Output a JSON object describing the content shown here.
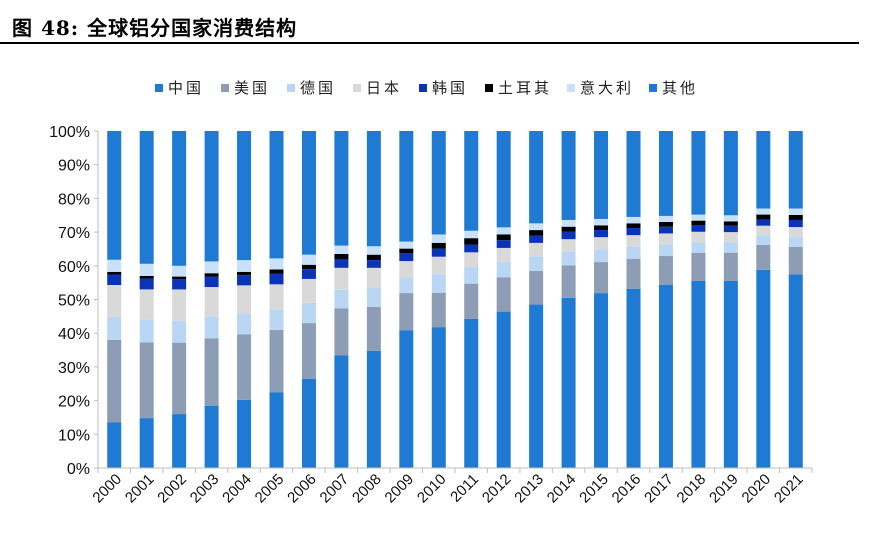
{
  "figure": {
    "title": "图 48:  全球铝分国家消费结构"
  },
  "chart_data": {
    "type": "bar",
    "stacked": true,
    "title": "",
    "xlabel": "",
    "ylabel": "",
    "ylim": [
      0,
      100
    ],
    "y_ticks": [
      "0%",
      "10%",
      "20%",
      "30%",
      "40%",
      "50%",
      "60%",
      "70%",
      "80%",
      "90%",
      "100%"
    ],
    "y_tick_values": [
      0,
      10,
      20,
      30,
      40,
      50,
      60,
      70,
      80,
      90,
      100
    ],
    "legend_position": "top",
    "categories": [
      "2000",
      "2001",
      "2002",
      "2003",
      "2004",
      "2005",
      "2006",
      "2007",
      "2008",
      "2009",
      "2010",
      "2011",
      "2012",
      "2013",
      "2014",
      "2015",
      "2016",
      "2017",
      "2018",
      "2019",
      "2020",
      "2021"
    ],
    "series": [
      {
        "name": "中国",
        "color": "#1f7ad4",
        "values": [
          13.5,
          14.8,
          16.0,
          18.5,
          20.2,
          22.5,
          26.5,
          33.4,
          34.8,
          40.9,
          41.8,
          44.3,
          46.4,
          48.5,
          50.5,
          51.9,
          53.2,
          54.4,
          55.5,
          55.5,
          58.8,
          57.5
        ]
      },
      {
        "name": "美国",
        "color": "#8c9db5",
        "values": [
          24.5,
          22.5,
          21.2,
          20.0,
          19.5,
          18.5,
          16.5,
          14.0,
          13.0,
          11.0,
          10.2,
          10.4,
          10.2,
          10.0,
          9.6,
          9.2,
          8.9,
          8.5,
          8.3,
          8.4,
          7.4,
          8.1
        ]
      },
      {
        "name": "德国",
        "color": "#b9d7f5",
        "values": [
          6.8,
          6.7,
          6.4,
          6.5,
          6.0,
          6.0,
          6.0,
          5.5,
          5.6,
          4.7,
          5.5,
          4.8,
          4.5,
          4.3,
          4.0,
          3.8,
          3.6,
          3.4,
          3.2,
          3.1,
          2.9,
          2.9
        ]
      },
      {
        "name": "日本",
        "color": "#d9d9d9",
        "values": [
          9.5,
          9.0,
          9.4,
          8.7,
          8.5,
          7.5,
          7.1,
          6.5,
          6.0,
          4.8,
          5.2,
          4.5,
          4.2,
          4.0,
          3.8,
          3.6,
          3.4,
          3.3,
          3.1,
          3.0,
          2.8,
          3.0
        ]
      },
      {
        "name": "韩国",
        "color": "#0a34b8",
        "values": [
          3.1,
          3.2,
          3.0,
          3.1,
          3.0,
          3.2,
          2.9,
          2.5,
          2.3,
          2.3,
          2.4,
          2.3,
          2.3,
          2.2,
          2.2,
          2.1,
          2.1,
          2.0,
          2.0,
          1.9,
          1.8,
          2.1
        ]
      },
      {
        "name": "土耳其",
        "color": "#000000",
        "values": [
          0.8,
          0.8,
          0.8,
          1.0,
          1.0,
          1.2,
          1.3,
          1.6,
          1.6,
          1.4,
          1.7,
          1.9,
          1.7,
          1.6,
          1.5,
          1.4,
          1.4,
          1.4,
          1.3,
          1.3,
          1.5,
          1.5
        ]
      },
      {
        "name": "意大利",
        "color": "#c8e0f8",
        "values": [
          3.6,
          3.6,
          3.2,
          3.5,
          3.5,
          3.3,
          3.0,
          2.5,
          2.5,
          2.1,
          2.5,
          2.2,
          2.1,
          2.0,
          2.0,
          1.9,
          1.9,
          1.8,
          1.8,
          1.8,
          1.8,
          1.9
        ]
      },
      {
        "name": "其他",
        "color": "#1f7ad4",
        "values": [
          38.2,
          39.4,
          40.0,
          38.7,
          38.3,
          37.8,
          36.7,
          34.0,
          34.2,
          32.8,
          30.7,
          29.6,
          28.6,
          27.4,
          26.4,
          26.1,
          25.5,
          25.2,
          24.8,
          25.0,
          23.0,
          23.0
        ]
      }
    ]
  }
}
